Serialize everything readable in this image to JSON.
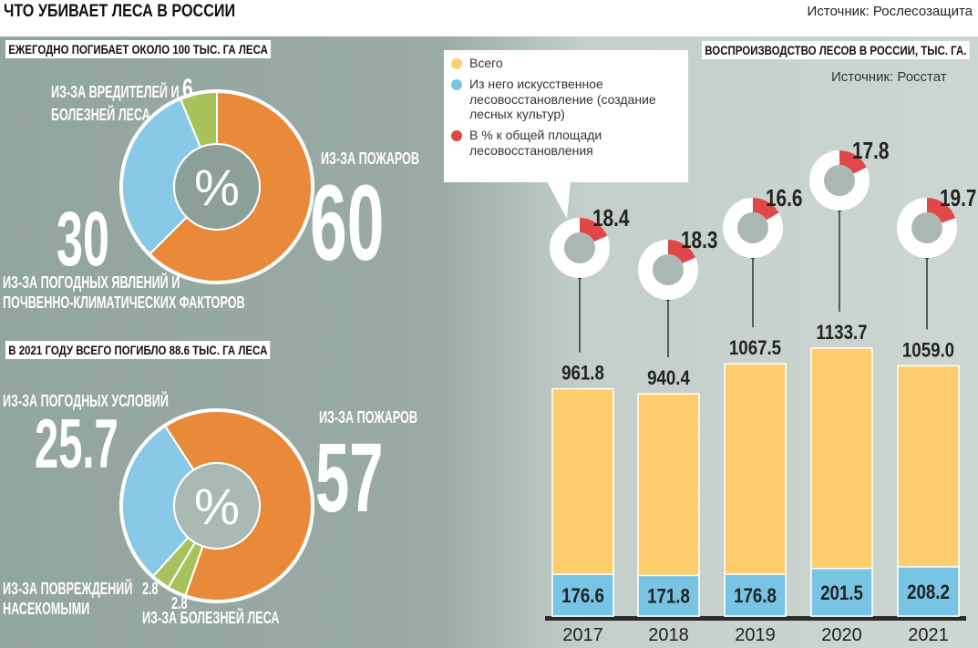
{
  "header": {
    "title": "ЧТО УБИВАЕТ ЛЕСА В РОССИИ",
    "source": "Источник: Рослесозащита"
  },
  "colors": {
    "fires": "#e88a3a",
    "weather": "#87c9e6",
    "pests": "#a7c25a",
    "total": "#fdcd6e",
    "artificial": "#78c4e4",
    "pct": "#e04848"
  },
  "chart_data": [
    {
      "type": "pie",
      "title": "ЕЖЕГОДНО ПОГИБАЕТ ОКОЛО 100 ТЫС. ГА ЛЕСА",
      "center_label": "%",
      "slices": [
        {
          "label": "ИЗ-ЗА ПОЖАРОВ",
          "value": 60,
          "color": "#e88a3a"
        },
        {
          "label": "ИЗ-ЗА ПОГОДНЫХ ЯВЛЕНИЙ И ПОЧВЕННО-КЛИМАТИЧЕСКИХ ФАКТОРОВ",
          "value": 30,
          "color": "#87c9e6"
        },
        {
          "label": "ИЗ-ЗА ВРЕДИТЕЛЕЙ И БОЛЕЗНЕЙ ЛЕСА",
          "value": 6,
          "color": "#a7c25a"
        }
      ]
    },
    {
      "type": "pie",
      "title": "В 2021 ГОДУ ВСЕГО ПОГИБЛО 88.6 ТЫС. ГА  ЛЕСА",
      "center_label": "%",
      "slices": [
        {
          "label": "ИЗ-ЗА ПОЖАРОВ",
          "value": 57,
          "color": "#e88a3a"
        },
        {
          "label": "ИЗ-ЗА БОЛЕЗНЕЙ ЛЕСА",
          "value": 2.8,
          "color": "#a7c25a"
        },
        {
          "label": "ИЗ-ЗА ПОВРЕЖДЕНИЙ НАСЕКОМЫМИ",
          "value": 2.8,
          "color": "#a7c25a"
        },
        {
          "label": "ИЗ-ЗА ПОГОДНЫХ УСЛОВИЙ",
          "value": 25.7,
          "color": "#87c9e6"
        }
      ]
    },
    {
      "type": "bar",
      "title": "ВОСПРОИЗВОДСТВО ЛЕСОВ В РОССИИ, ТЫС. ГА.",
      "source": "Источник: Росстат",
      "categories": [
        "2017",
        "2018",
        "2019",
        "2020",
        "2021"
      ],
      "series": [
        {
          "name": "Всего",
          "values": [
            961.8,
            940.4,
            1067.5,
            1133.7,
            1059.0
          ],
          "labels": [
            "961.8",
            "940.4",
            "1067.5",
            "1133.7",
            "1059.0"
          ]
        },
        {
          "name": "Из него искусственное лесовосстановление (создание лесных культур)",
          "values": [
            176.6,
            171.8,
            176.8,
            201.5,
            208.2
          ],
          "labels": [
            "176.6",
            "171.8",
            "176.8",
            "201.5",
            "208.2"
          ]
        },
        {
          "name": "В % к общей площади лесовосстановления",
          "values": [
            18.4,
            18.3,
            16.6,
            17.8,
            19.7
          ],
          "labels": [
            "18.4",
            "18.3",
            "16.6",
            "17.8",
            "19.7"
          ]
        }
      ],
      "ylim": [
        0,
        1200
      ]
    }
  ],
  "text": {
    "d1_fires": "ИЗ-ЗА ПОЖАРОВ",
    "d1_fires_v": "60",
    "d1_weather_1": "ИЗ-ЗА ПОГОДНЫХ ЯВЛЕНИЙ И",
    "d1_weather_2": "ПОЧВЕННО-КЛИМАТИЧЕСКИХ ФАКТОРОВ",
    "d1_weather_v": "30",
    "d1_pests_1": "ИЗ-ЗА ВРЕДИТЕЛЕЙ И",
    "d1_pests_2": "БОЛЕЗНЕЙ ЛЕСА",
    "d1_pests_v": "6",
    "d2_fires": "ИЗ-ЗА ПОЖАРОВ",
    "d2_fires_v": "57",
    "d2_weather": "ИЗ-ЗА ПОГОДНЫХ УСЛОВИЙ",
    "d2_weather_v": "25.7",
    "d2_insects_1": "ИЗ-ЗА ПОВРЕЖДЕНИЙ",
    "d2_insects_2": "НАСЕКОМЫМИ",
    "d2_insects_v": "2.8",
    "d2_disease": "ИЗ-ЗА БОЛЕЗНЕЙ ЛЕСА",
    "d2_disease_v": "2.8"
  }
}
